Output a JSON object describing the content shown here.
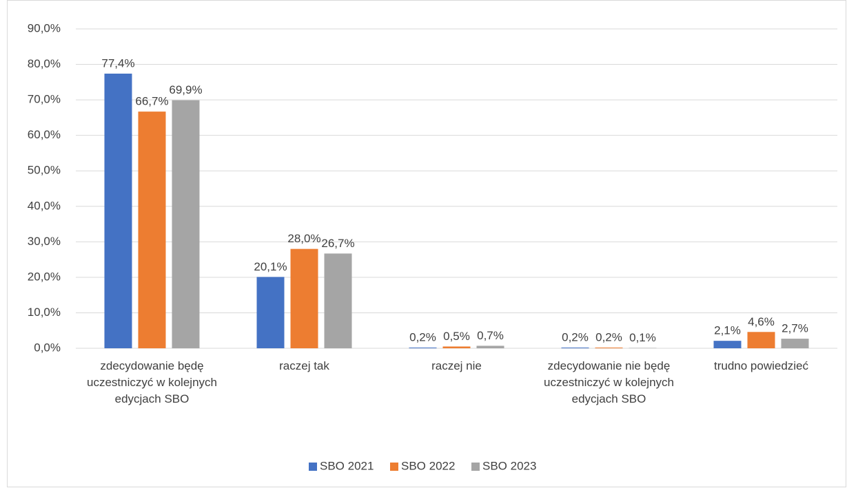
{
  "chart_data": {
    "type": "bar",
    "categories": [
      "zdecydowanie będę uczestniczyć w kolejnych edycjach SBO",
      "raczej tak",
      "raczej nie",
      "zdecydowanie nie będę uczestniczyć w kolejnych edycjach SBO",
      "trudno powiedzieć"
    ],
    "series": [
      {
        "name": "SBO 2021",
        "color": "#4472c4",
        "values": [
          77.4,
          20.1,
          0.2,
          0.2,
          2.1
        ],
        "value_labels": [
          "77,4%",
          "20,1%",
          "0,2%",
          "0,2%",
          "2,1%"
        ]
      },
      {
        "name": "SBO 2022",
        "color": "#ed7d31",
        "values": [
          66.7,
          28.0,
          0.5,
          0.2,
          4.6
        ],
        "value_labels": [
          "66,7%",
          "28,0%",
          "0,5%",
          "0,2%",
          "4,6%"
        ]
      },
      {
        "name": "SBO 2023",
        "color": "#a5a5a5",
        "values": [
          69.9,
          26.7,
          0.7,
          0.1,
          2.7
        ],
        "value_labels": [
          "69,9%",
          "26,7%",
          "0,7%",
          "0,1%",
          "2,7%"
        ]
      }
    ],
    "ylim": [
      0,
      90
    ],
    "yticks": [
      {
        "value": 0,
        "label": "0,0%"
      },
      {
        "value": 10,
        "label": "10,0%"
      },
      {
        "value": 20,
        "label": "20,0%"
      },
      {
        "value": 30,
        "label": "30,0%"
      },
      {
        "value": 40,
        "label": "40,0%"
      },
      {
        "value": 50,
        "label": "50,0%"
      },
      {
        "value": 60,
        "label": "60,0%"
      },
      {
        "value": 70,
        "label": "70,0%"
      },
      {
        "value": 80,
        "label": "80,0%"
      },
      {
        "value": 90,
        "label": "90,0%"
      }
    ],
    "grid": true,
    "legend": "bottom"
  }
}
